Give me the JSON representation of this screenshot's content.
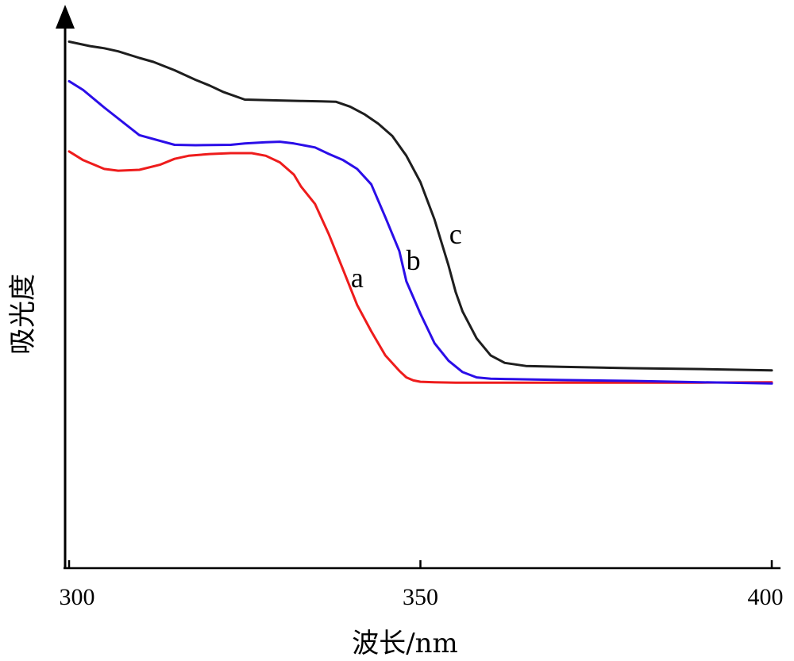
{
  "chart_data": {
    "type": "line",
    "title": "",
    "xlabel": "波长/nm",
    "ylabel": "吸光度",
    "xlim": [
      300,
      400
    ],
    "ylim": [
      0,
      100
    ],
    "xticks": [
      300,
      350,
      400
    ],
    "grid": false,
    "legend": "none",
    "series": [
      {
        "name": "a",
        "color": "#ee1c1c",
        "x": [
          300,
          302,
          305,
          307,
          310,
          313,
          315,
          317,
          320,
          323,
          326,
          328,
          330,
          332,
          333,
          335,
          337,
          339,
          341,
          343,
          345,
          347,
          348,
          349,
          350,
          352,
          355,
          360,
          370,
          380,
          390,
          400
        ],
        "y": [
          74,
          72,
          70,
          69.6,
          69.8,
          71,
          72.3,
          73,
          73.4,
          73.6,
          73.6,
          73,
          71.5,
          68.7,
          66,
          62,
          55,
          47,
          39,
          33,
          27.5,
          24,
          22.5,
          21.8,
          21.5,
          21.4,
          21.3,
          21.3,
          21.3,
          21.3,
          21.3,
          21.4
        ]
      },
      {
        "name": "b",
        "color": "#2b0ee8",
        "x": [
          300,
          302,
          305,
          310,
          315,
          318,
          323,
          325,
          328,
          330,
          332,
          335,
          337,
          339,
          341,
          343,
          345,
          347,
          348,
          350,
          352,
          354,
          356,
          358,
          360,
          363,
          370,
          380,
          390,
          400
        ],
        "y": [
          90,
          88,
          84,
          77.7,
          75.5,
          75.4,
          75.5,
          75.8,
          76.1,
          76.2,
          75.8,
          74.9,
          73.4,
          72,
          70,
          66.5,
          59,
          51.3,
          44.4,
          37,
          30.3,
          26.3,
          23.7,
          22.5,
          22.2,
          22.1,
          21.9,
          21.7,
          21.4,
          21.1
        ]
      },
      {
        "name": "c",
        "color": "#1e1e1e",
        "x": [
          300,
          303,
          305,
          307,
          310,
          312,
          315,
          318,
          320,
          322,
          325,
          330,
          333,
          336,
          338,
          340,
          342,
          344,
          346,
          348,
          350,
          352,
          354,
          355,
          356,
          358,
          360,
          362,
          365,
          370,
          380,
          390,
          400
        ],
        "y": [
          99,
          98,
          97.5,
          96.8,
          95.3,
          94.4,
          92.5,
          90.3,
          89,
          87.5,
          85.8,
          85.6,
          85.5,
          85.4,
          85.3,
          84.2,
          82.5,
          80.3,
          77.5,
          73,
          67,
          58.5,
          48,
          42,
          37.5,
          31.4,
          27.5,
          25.8,
          25.1,
          24.9,
          24.6,
          24.4,
          24.1
        ]
      }
    ],
    "annotations": [
      {
        "text": "a",
        "x": 341,
        "y": 43
      },
      {
        "text": "b",
        "x": 349,
        "y": 47
      },
      {
        "text": "c",
        "x": 355,
        "y": 53
      }
    ]
  }
}
